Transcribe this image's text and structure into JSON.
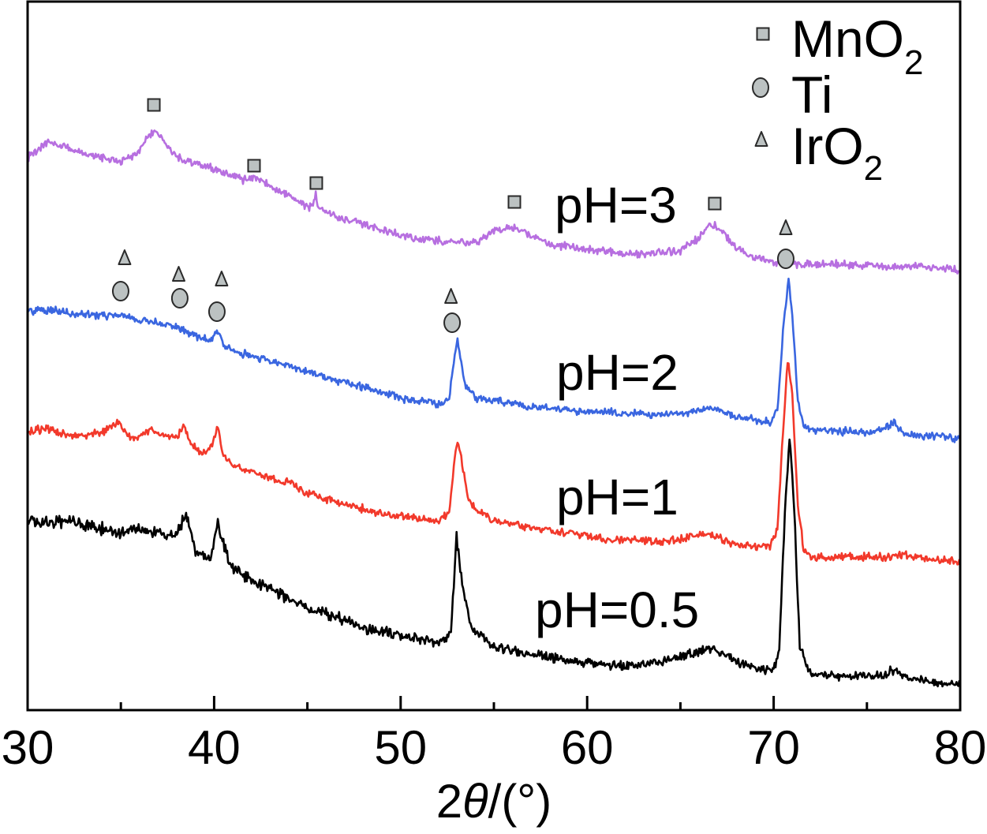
{
  "chart_data": {
    "type": "line",
    "title": "",
    "ylabel": "",
    "xlabel": {
      "prefix": "2",
      "symbol": "θ",
      "suffix": "/(°)"
    },
    "xlim": [
      30,
      80
    ],
    "ylim": [
      0,
      450
    ],
    "xticks": [
      30,
      40,
      50,
      60,
      70,
      80
    ],
    "xticklabels": [
      "30",
      "40",
      "50",
      "60",
      "70",
      "80"
    ],
    "minor_xticks": [
      35,
      45,
      55,
      65,
      75
    ],
    "grid": false,
    "colors": {
      "marker_fill": "#bcc2c2",
      "marker_stroke": "#2a2a2a",
      "axis": "#000000"
    },
    "series": [
      {
        "name": "pH=3",
        "color": "#b76fe0",
        "x": [
          30,
          30.5,
          31,
          32,
          33,
          34,
          35,
          35.8,
          36.4,
          36.8,
          37.2,
          37.8,
          38.5,
          39.5,
          40.5,
          41.5,
          42.2,
          43,
          44,
          45,
          45.3,
          45.45,
          45.6,
          46,
          47,
          48,
          49,
          50,
          51,
          52,
          53,
          54,
          54.8,
          55.5,
          56.2,
          57,
          58,
          59,
          60,
          61,
          62,
          63,
          64,
          65,
          65.8,
          66.4,
          66.8,
          67.3,
          68,
          69,
          70,
          71,
          72,
          73,
          74,
          75,
          76,
          77,
          78,
          79,
          80
        ],
        "y": [
          350,
          355,
          360,
          357.5,
          352.5,
          350,
          347.5,
          352.5,
          362.5,
          367.5,
          362.5,
          352.5,
          347.5,
          345,
          341,
          336,
          337.5,
          332.5,
          325,
          319,
          319,
          327.5,
          317.5,
          315,
          311,
          307.5,
          304,
          301,
          299,
          297.5,
          297,
          296,
          302.5,
          305,
          306,
          300,
          295,
          294,
          292,
          291,
          290,
          289,
          290,
          291,
          297.5,
          305,
          307.5,
          302.5,
          292.5,
          287.5,
          284,
          282.5,
          282.5,
          283,
          282,
          282,
          281.5,
          281,
          281,
          280,
          279
        ]
      },
      {
        "name": "pH=2",
        "color": "#3a66e0",
        "x": [
          30,
          31,
          32,
          33,
          34,
          35,
          36,
          37,
          38,
          39,
          39.8,
          40.2,
          40.6,
          41,
          42,
          43,
          44,
          45,
          46,
          47,
          48,
          49,
          50,
          51,
          52,
          52.6,
          52.9,
          53.05,
          53.2,
          53.5,
          54,
          55,
          56,
          57,
          58,
          59,
          60,
          61,
          62,
          63,
          64,
          65,
          66,
          66.8,
          67.5,
          68,
          69,
          69.8,
          70.2,
          70.5,
          70.8,
          71,
          71.3,
          71.6,
          72,
          73,
          74,
          75,
          76,
          76.4,
          76.8,
          77,
          78,
          79,
          80
        ],
        "y": [
          252.5,
          254,
          252,
          251,
          250,
          250,
          247.5,
          245,
          242.5,
          237.5,
          234,
          241,
          230,
          227.5,
          225,
          221,
          217.5,
          215,
          211,
          207.5,
          205,
          201,
          197.5,
          196,
          194,
          197.5,
          225,
          234,
          225,
          205,
          197.5,
          196,
          194,
          192.5,
          191,
          190,
          189,
          189,
          188,
          187.5,
          187.5,
          188,
          190,
          191,
          188,
          186,
          184,
          182.5,
          190,
          240,
          272.5,
          250,
          195,
          180,
          177.5,
          177,
          176.5,
          176,
          179,
          182.5,
          177.5,
          175,
          174,
          173.5,
          172.5
        ]
      },
      {
        "name": "pH=1",
        "color": "#f2392b",
        "x": [
          30,
          31,
          32,
          33,
          34,
          34.9,
          35.5,
          36,
          36.5,
          37,
          38,
          38.4,
          38.8,
          39.4,
          39.9,
          40.15,
          40.5,
          41,
          42,
          43,
          44,
          45,
          46,
          47,
          48,
          49,
          50,
          51,
          52,
          52.6,
          52.9,
          53.05,
          53.2,
          53.6,
          54,
          55,
          56,
          57,
          58,
          59,
          60,
          61,
          62,
          63,
          64,
          65,
          66,
          66.5,
          67,
          68,
          69,
          69.8,
          70.2,
          70.5,
          70.75,
          71,
          71.3,
          71.6,
          72,
          73,
          74,
          75,
          76,
          77,
          77.5,
          78,
          79,
          80
        ],
        "y": [
          176,
          179,
          175,
          174,
          176,
          182.5,
          172.5,
          172.5,
          177.5,
          175,
          172.5,
          181,
          167.5,
          162.5,
          167.5,
          180,
          162.5,
          155,
          151,
          147.5,
          144,
          137.5,
          134,
          130,
          127.5,
          125,
          122.5,
          121,
          120,
          125,
          160,
          172,
          162.5,
          135,
          127.5,
          120,
          117.5,
          116,
          114,
          112.5,
          110,
          108.5,
          108,
          107.5,
          107,
          108,
          111,
          112,
          109,
          105,
          104,
          104,
          115,
          175,
          222,
          200,
          130,
          102.5,
          97.5,
          97,
          97,
          97.5,
          97,
          99,
          97,
          96,
          95,
          94
        ]
      },
      {
        "name": "pH=0.5",
        "color": "#000000",
        "x": [
          30,
          31,
          32,
          33,
          34,
          35,
          36,
          37,
          38,
          38.5,
          39,
          39.8,
          40.2,
          40.8,
          41,
          42,
          43,
          44,
          45,
          46,
          47,
          48,
          49,
          50,
          51,
          52,
          52.7,
          53,
          53.3,
          53.8,
          55,
          57,
          60,
          62,
          64,
          65,
          66,
          66.8,
          68,
          69,
          70,
          70.3,
          70.6,
          70.85,
          71.1,
          71.4,
          72,
          74,
          76,
          76.3,
          77,
          78,
          80
        ],
        "y": [
          120,
          119,
          120,
          117.5,
          115,
          112.5,
          114,
          112.5,
          110,
          125,
          100,
          97.5,
          117.5,
          95,
          90,
          82.5,
          77.5,
          70,
          65,
          61,
          57.5,
          52.5,
          50,
          47.5,
          45,
          42.5,
          50,
          110,
          80,
          52.5,
          40,
          35,
          30,
          27.5,
          30,
          34,
          37.5,
          39,
          30,
          27.5,
          25,
          40,
          125,
          172.5,
          130,
          40,
          22.5,
          21,
          22.5,
          26,
          21,
          19,
          16
        ]
      }
    ],
    "legend": {
      "position": "top-right",
      "entries": [
        {
          "name": "MnO",
          "sub": "2",
          "marker": "square"
        },
        {
          "name": "Ti",
          "sub": "",
          "marker": "circle"
        },
        {
          "name": "IrO",
          "sub": "2",
          "marker": "triangle"
        }
      ]
    },
    "annotations": [
      {
        "legend_entry": 0,
        "marker": "square",
        "points": [
          [
            36.77,
            383.5
          ],
          [
            42.14,
            345
          ],
          [
            45.48,
            334
          ],
          [
            56.1,
            322
          ],
          [
            66.84,
            321
          ]
        ]
      },
      {
        "legend_entry": 1,
        "marker": "circle",
        "points": [
          [
            34.99,
            265.5
          ],
          [
            38.16,
            261
          ],
          [
            40.15,
            252.5
          ],
          [
            52.76,
            245.5
          ],
          [
            70.65,
            286
          ]
        ]
      },
      {
        "legend_entry": 2,
        "marker": "triangle",
        "points": [
          [
            35.2,
            286.5
          ],
          [
            38.1,
            276
          ],
          [
            40.4,
            273
          ],
          [
            52.7,
            262
          ],
          [
            70.65,
            305.5
          ]
        ]
      }
    ]
  }
}
